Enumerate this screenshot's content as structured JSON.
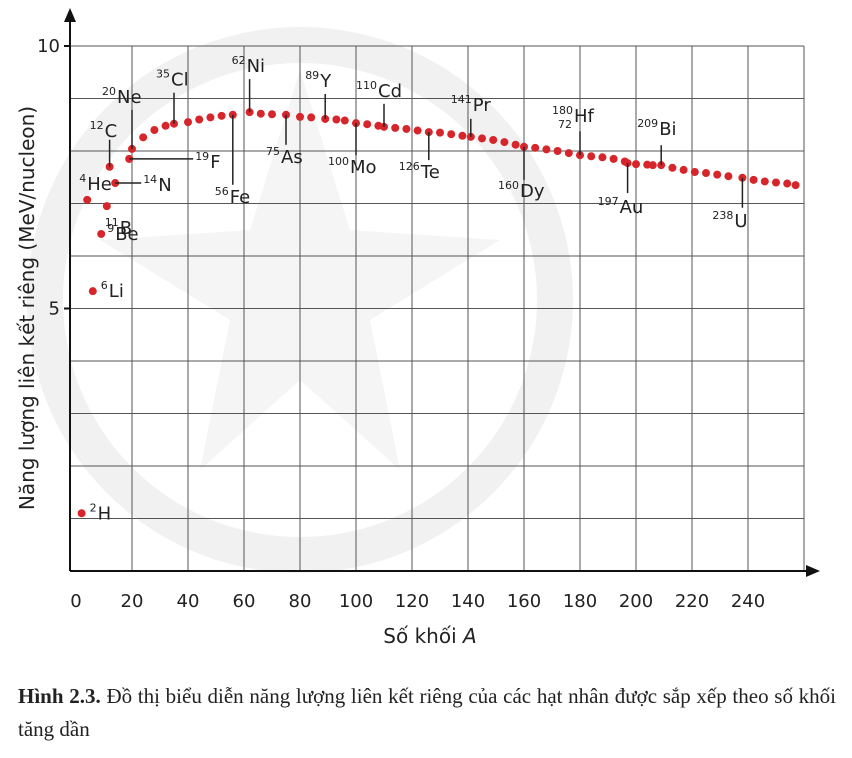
{
  "chart_data": {
    "type": "scatter",
    "ylabel": "Năng lượng liên kết riêng (MeV/nucleon)",
    "xlabel": "Số khối",
    "xlabel_var": "A",
    "color": "#d7262b",
    "xlim": [
      0,
      260
    ],
    "ylim": [
      0,
      10
    ],
    "xticks": [
      0,
      20,
      40,
      60,
      80,
      100,
      120,
      140,
      160,
      180,
      200,
      220,
      240
    ],
    "xgrid": [
      20,
      40,
      60,
      80,
      100,
      120,
      140,
      160,
      180,
      200,
      220,
      240,
      260
    ],
    "yticks": [
      5,
      10
    ],
    "ygrid": [
      1,
      2,
      3,
      4,
      5,
      6,
      7,
      8,
      9,
      10
    ],
    "grid": true,
    "x": [
      2,
      4,
      6,
      9,
      11,
      12,
      14,
      19,
      20,
      24,
      28,
      32,
      35,
      40,
      44,
      48,
      52,
      56,
      62,
      66,
      70,
      75,
      80,
      84,
      89,
      93,
      96,
      100,
      104,
      108,
      110,
      114,
      118,
      122,
      126,
      130,
      134,
      138,
      141,
      145,
      149,
      153,
      157,
      160,
      164,
      168,
      172,
      176,
      180,
      184,
      188,
      192,
      196,
      197,
      200,
      204,
      206,
      209,
      213,
      217,
      221,
      225,
      229,
      233,
      238,
      242,
      246,
      250,
      254,
      257
    ],
    "values": [
      1.1,
      7.07,
      5.33,
      6.42,
      6.95,
      7.7,
      7.39,
      7.85,
      8.04,
      8.26,
      8.4,
      8.48,
      8.52,
      8.55,
      8.6,
      8.64,
      8.67,
      8.69,
      8.74,
      8.71,
      8.7,
      8.69,
      8.65,
      8.64,
      8.61,
      8.6,
      8.58,
      8.53,
      8.51,
      8.48,
      8.46,
      8.44,
      8.42,
      8.39,
      8.36,
      8.35,
      8.32,
      8.29,
      8.27,
      8.24,
      8.21,
      8.17,
      8.12,
      8.08,
      8.06,
      8.03,
      8.0,
      7.96,
      7.92,
      7.9,
      7.88,
      7.85,
      7.8,
      7.77,
      7.75,
      7.74,
      7.73,
      7.73,
      7.68,
      7.64,
      7.6,
      7.58,
      7.55,
      7.52,
      7.49,
      7.45,
      7.42,
      7.4,
      7.38,
      7.35
    ],
    "annotations": [
      {
        "mass": "2",
        "symbol": "H"
      },
      {
        "mass": "6",
        "symbol": "Li"
      },
      {
        "mass": "9",
        "symbol": "Be"
      },
      {
        "mass": "4",
        "symbol": "He"
      },
      {
        "mass": "11",
        "symbol": "B"
      },
      {
        "mass": "14",
        "symbol": "N"
      },
      {
        "mass": "12",
        "symbol": "C"
      },
      {
        "mass": "19",
        "symbol": "F"
      },
      {
        "mass": "20",
        "symbol": "Ne"
      },
      {
        "mass": "35",
        "symbol": "Cl"
      },
      {
        "mass": "62",
        "symbol": "Ni"
      },
      {
        "mass": "56",
        "symbol": "Fe"
      },
      {
        "mass": "75",
        "symbol": "As"
      },
      {
        "mass": "89",
        "symbol": "Y"
      },
      {
        "mass": "100",
        "symbol": "Mo"
      },
      {
        "mass": "110",
        "symbol": "Cd"
      },
      {
        "mass": "126",
        "symbol": "Te"
      },
      {
        "mass": "141",
        "symbol": "Pr"
      },
      {
        "mass": "160",
        "symbol": "Dy"
      },
      {
        "mass": "180",
        "atomic_number": "72",
        "symbol": "Hf"
      },
      {
        "mass": "209",
        "symbol": "Bi"
      },
      {
        "mass": "197",
        "symbol": "Au"
      },
      {
        "mass": "238",
        "symbol": "U"
      }
    ]
  },
  "caption": {
    "label": "Hình 2.3.",
    "text": "Đồ thị biểu diễn năng lượng liên kết riêng của các hạt nhân được sắp xếp theo số khối tăng dần"
  }
}
